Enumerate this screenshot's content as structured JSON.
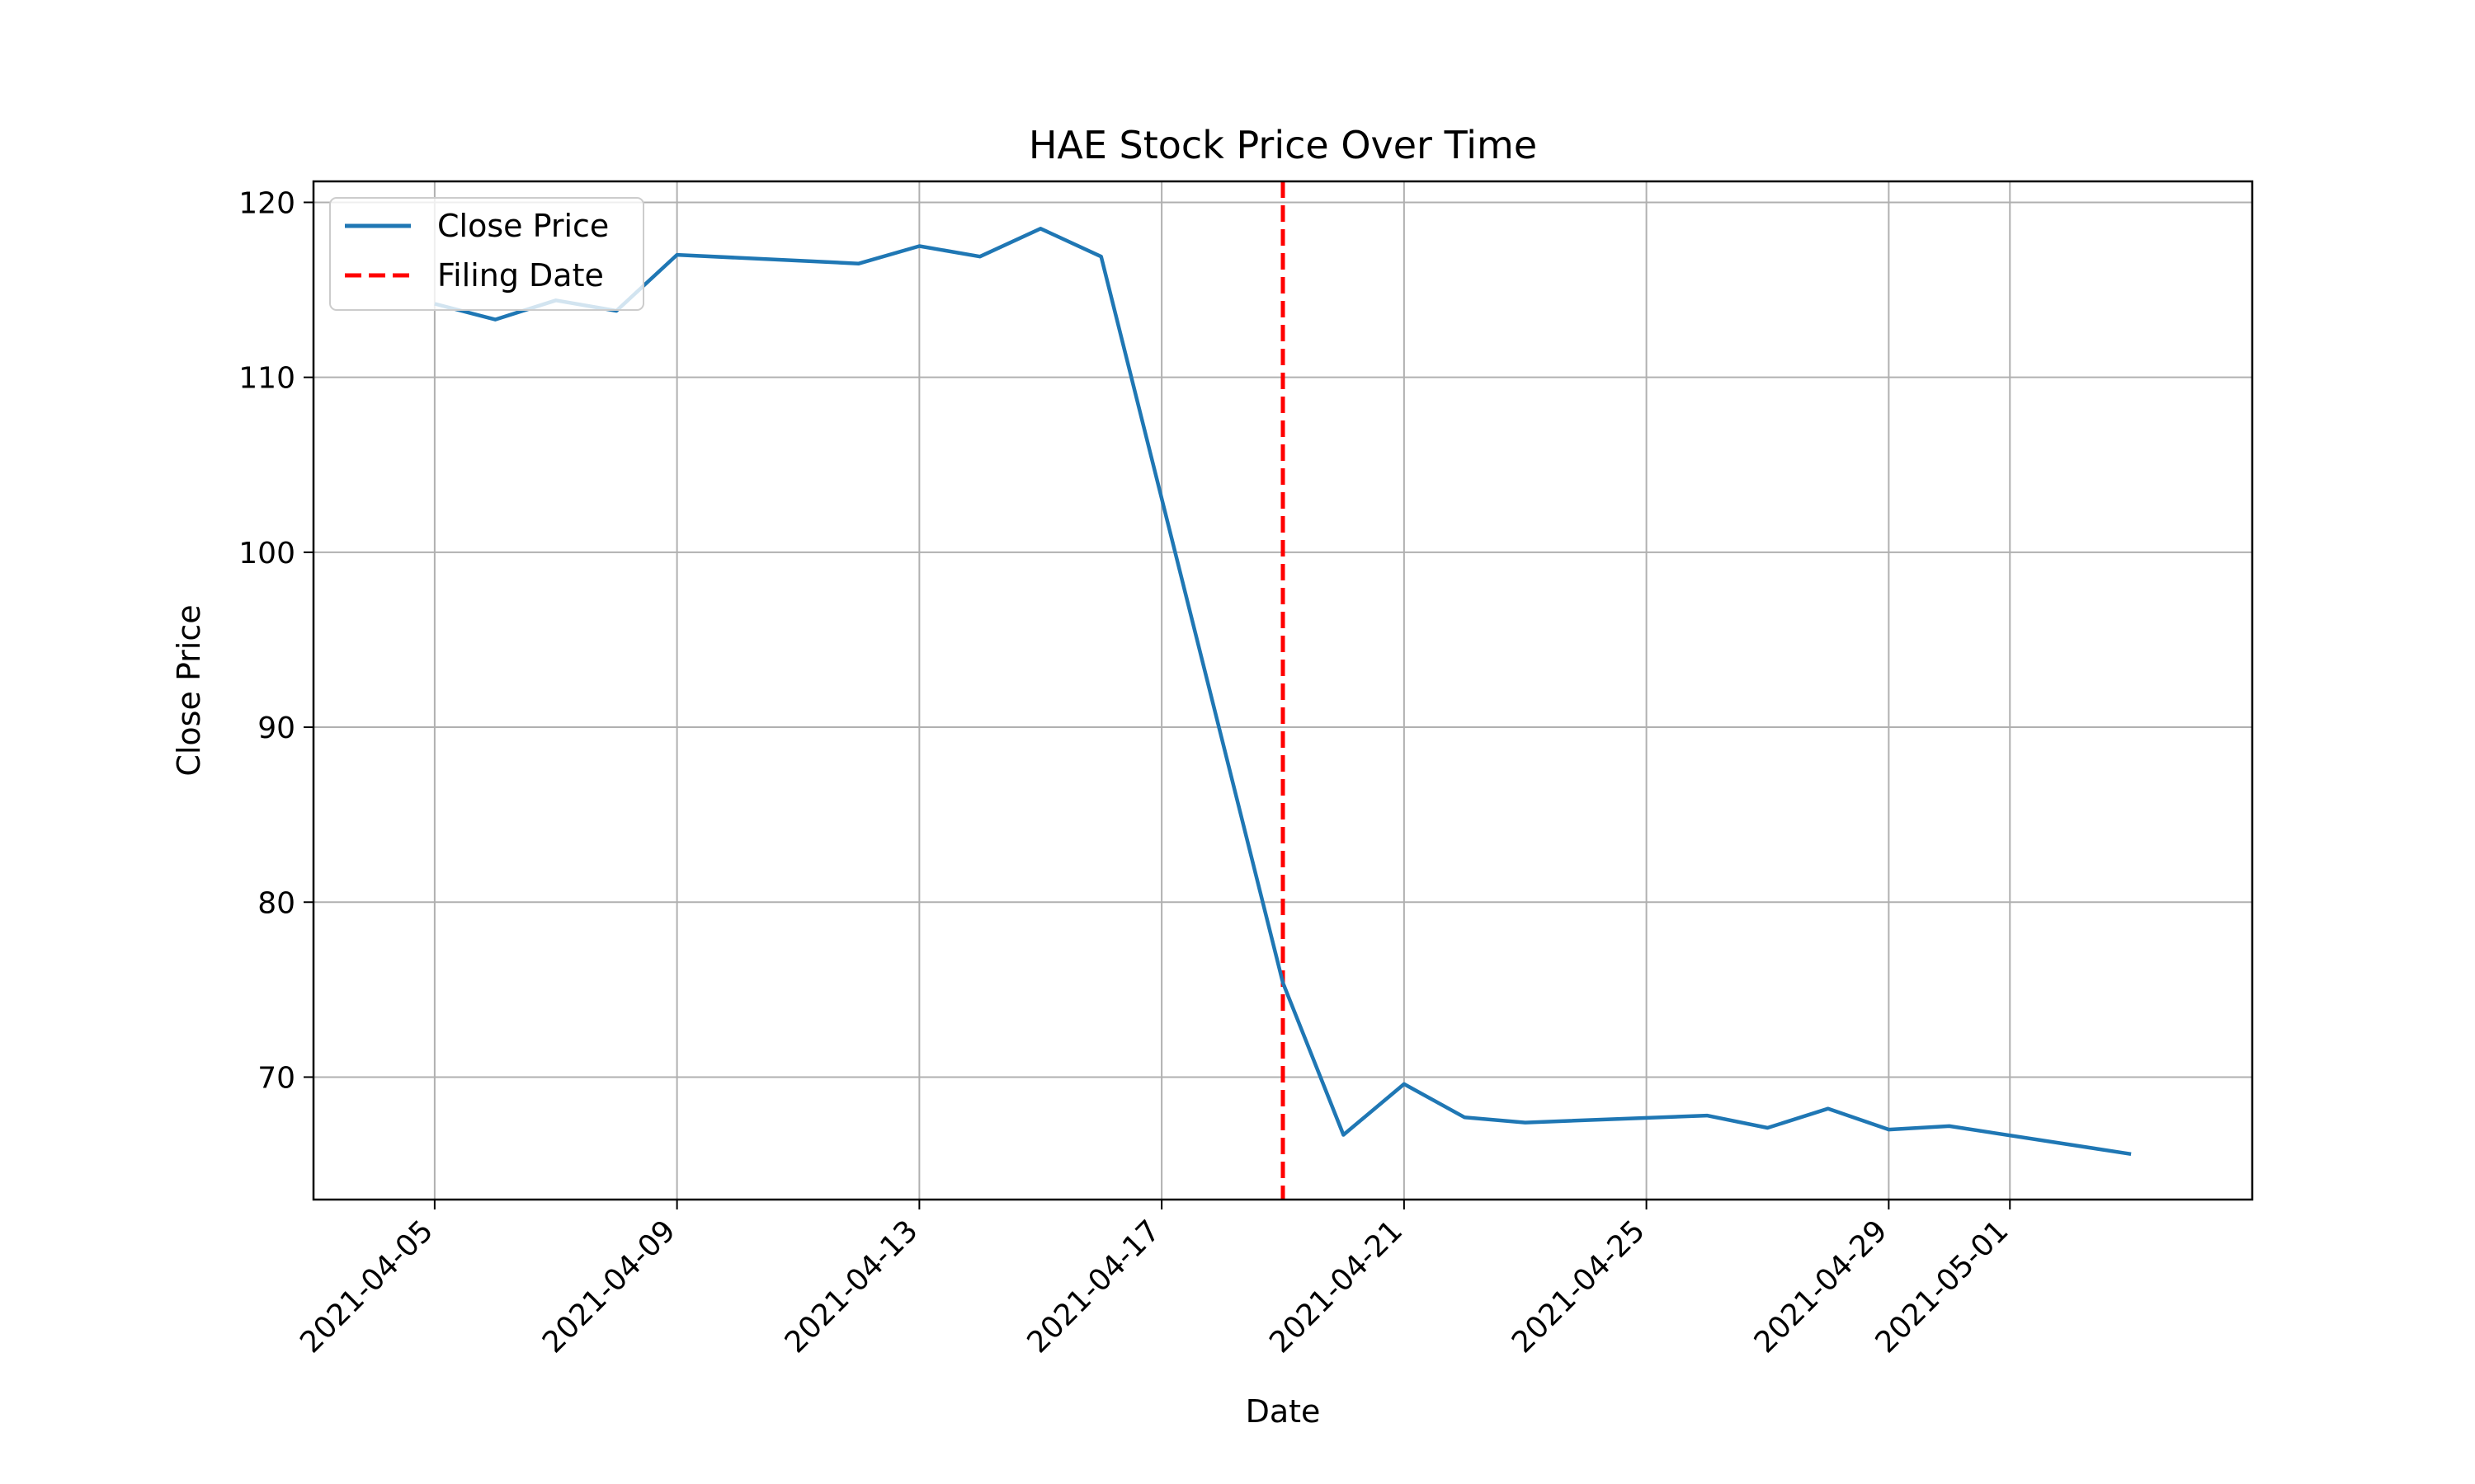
{
  "chart_data": {
    "type": "line",
    "title": "HAE Stock Price Over Time",
    "xlabel": "Date",
    "ylabel": "Close Price",
    "xlim": [
      "2021-04-03",
      "2021-05-05"
    ],
    "ylim": [
      63,
      121.2
    ],
    "x_ticks": [
      "2021-04-05",
      "2021-04-09",
      "2021-04-13",
      "2021-04-17",
      "2021-04-21",
      "2021-04-25",
      "2021-04-29",
      "2021-05-01"
    ],
    "y_ticks": [
      70,
      80,
      90,
      100,
      110,
      120
    ],
    "grid": true,
    "legend_position": "top-left",
    "series": [
      {
        "name": "Close Price",
        "color": "#1f77b4",
        "style": "solid",
        "x": [
          "2021-04-05",
          "2021-04-06",
          "2021-04-07",
          "2021-04-08",
          "2021-04-09",
          "2021-04-12",
          "2021-04-13",
          "2021-04-14",
          "2021-04-15",
          "2021-04-16",
          "2021-04-19",
          "2021-04-20",
          "2021-04-21",
          "2021-04-22",
          "2021-04-23",
          "2021-04-26",
          "2021-04-27",
          "2021-04-28",
          "2021-04-29",
          "2021-04-30",
          "2021-05-03"
        ],
        "values": [
          114.2,
          113.3,
          114.4,
          113.8,
          117.0,
          116.5,
          117.5,
          116.9,
          118.5,
          116.9,
          75.4,
          66.7,
          69.6,
          67.7,
          67.4,
          67.8,
          67.1,
          68.2,
          67.0,
          67.2,
          65.6
        ]
      }
    ],
    "reference_lines": [
      {
        "name": "Filing Date",
        "x": "2021-04-19",
        "color": "#ff0000",
        "style": "dashed"
      }
    ]
  }
}
